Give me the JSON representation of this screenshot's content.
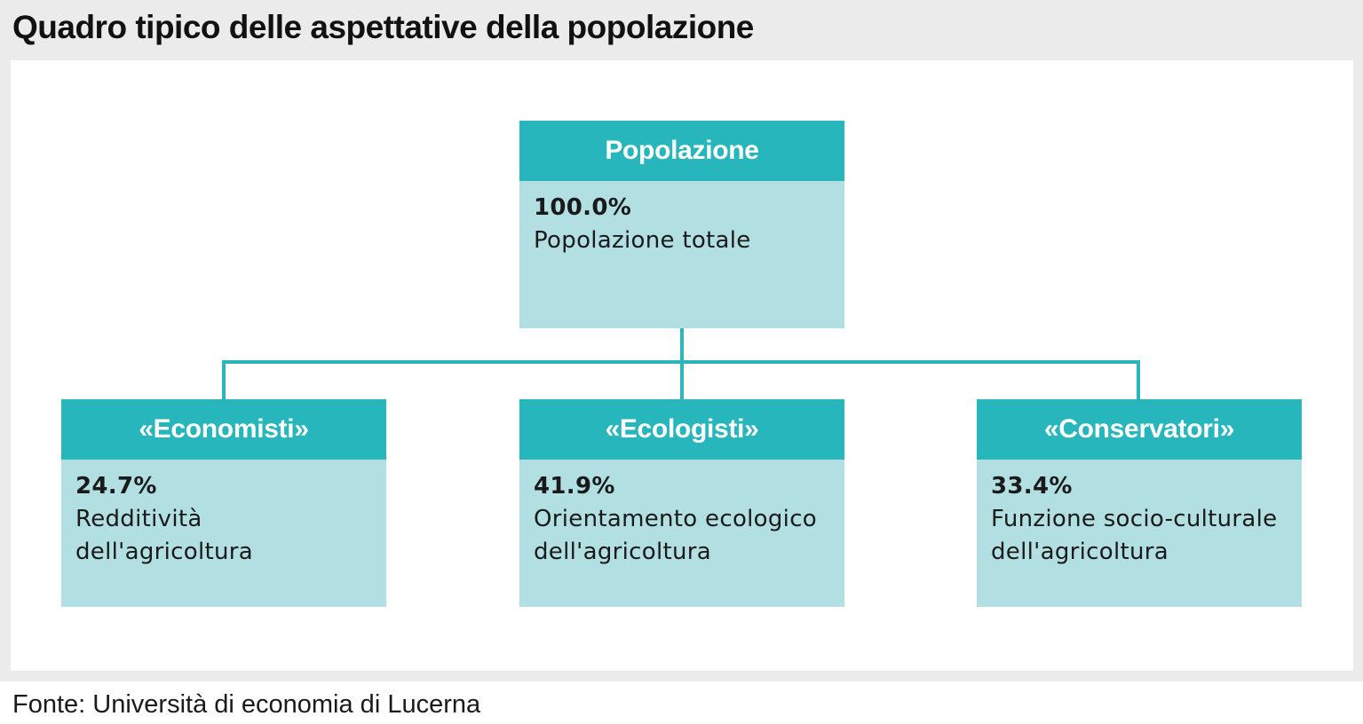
{
  "title": "Quadro tipico delle aspettative della popolazione",
  "source": "Fonte: Università di economia di Lucerna",
  "colors": {
    "header_teal": "#27b6bb",
    "body_light_teal": "#b2dfe2",
    "connector": "#2ab6bb",
    "frame_gray": "#ebebeb"
  },
  "root": {
    "header": "Popolazione",
    "value": "100.0%",
    "description": "Popolazione totale"
  },
  "children": [
    {
      "header": "«Economisti»",
      "value": "24.7%",
      "description": "Redditività\ndell'agricoltura"
    },
    {
      "header": "«Ecologisti»",
      "value": "41.9%",
      "description": "Orientamento ecologico\ndell'agricoltura"
    },
    {
      "header": "«Conservatori»",
      "value": "33.4%",
      "description": "Funzione socio-culturale\ndell'agricoltura"
    }
  ]
}
